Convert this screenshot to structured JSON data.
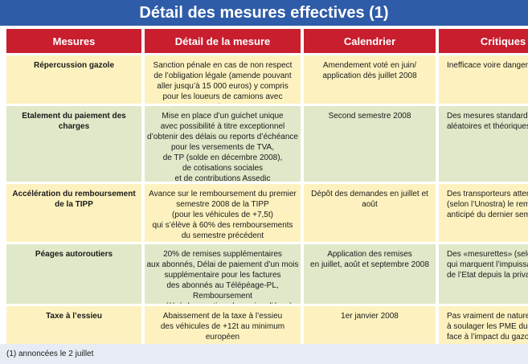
{
  "title": "Détail des mesures effectives (1)",
  "headers": [
    "Mesures",
    "Détail de la mesure",
    "Calendrier",
    "Critiques"
  ],
  "rows": [
    {
      "mesure": "Répercussion gazole",
      "detail": "Sanction pénale en cas de non respect\nde l’obligation légale (amende pouvant\naller jusqu’à 15 000 euros) y compris\npour les loueurs de camions avec conducteur",
      "calendrier": "Amendement voté en juin/\napplication dès juillet 2008",
      "critiques": "Inefficace voire dangereux, fera"
    },
    {
      "mesure": "Etalement du paiement des charges",
      "detail": "Mise en place d’un guichet unique\navec possibilité à titre exceptionnel\nd’obtenir des délais ou reports d’échéance\npour les versements de TVA,\nde TP (solde en décembre 2008),\nde cotisations sociales\net de contributions Assedic",
      "calendrier": "Second semestre 2008",
      "critiques": "Des mesures standards,\naléatoires et théoriques, selon la"
    },
    {
      "mesure": "Accélération du remboursement\nde la TIPP",
      "detail": "Avance sur le remboursement du premier\nsemestre 2008 de la TIPP\n(pour les véhicules de +7,5t)\nqui s’élève à 60% des remboursements\ndu semestre précédent",
      "calendrier": "Dépôt des demandes en juillet et août",
      "critiques": "Des transporteurs attendent en\n(selon l’Unostra) le rembourse\nanticipé du dernier semestre 2"
    },
    {
      "mesure": "Péages autoroutiers",
      "detail": "20% de remises supplémentaires\naux abonnés, Délai de paiement d’un mois\nsupplémentaire pour les factures\ndes abonnés au Télépéage-PL, Remboursement\naccéléré des cautions bancaires liées à Caplis",
      "calendrier": "Application des remises\nen juillet, août et septembre 2008",
      "critiques": "Des «mesurettes» (selon la F\nqui marquent l’impuissanc\nde l’Etat depuis la privatisat"
    },
    {
      "mesure": "Taxe à l’essieu",
      "detail": "Abaissement de la taxe à l’essieu\ndes véhicules de +12t au minimum européen",
      "calendrier": "1er janvier 2008",
      "critiques": "Pas vraiment de nature (selon l\nà soulager les PME du transp\nface à l’impact du gazole"
    }
  ],
  "footnote": "(1) annoncées le 2 juillet"
}
